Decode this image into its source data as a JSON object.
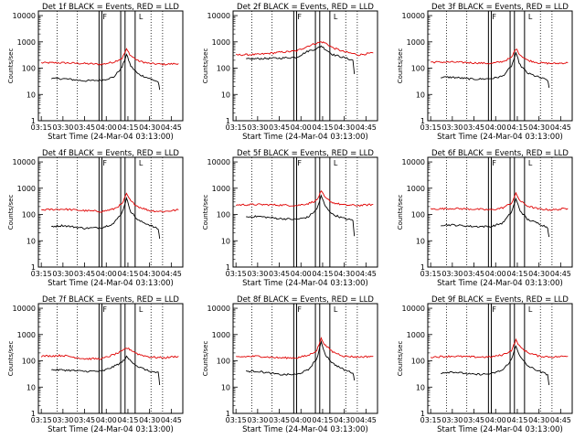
{
  "chart_data": [
    {
      "type": "line",
      "title": "Det 1f BLACK = Events, RED = LLD",
      "ylabel": "Counts/sec",
      "xlabel": "Start Time (24-Mar-04 03:13:00)",
      "xticks": [
        "03:15",
        "03:30",
        "03:45",
        "04:00",
        "04:15",
        "04:30",
        "04:45"
      ],
      "yticks": [
        "1",
        "10",
        "100",
        "1000",
        "10000"
      ],
      "ylim": [
        1,
        15000
      ],
      "yscale": "log",
      "series": [
        {
          "name": "RED = LLD",
          "color": "#e00000",
          "x": [
            "03:15",
            "03:30",
            "03:45",
            "03:57",
            "04:05",
            "04:11",
            "04:14",
            "04:17",
            "04:22",
            "04:30",
            "04:40",
            "04:50"
          ],
          "values": [
            160,
            160,
            150,
            140,
            170,
            240,
            520,
            300,
            190,
            150,
            140,
            150
          ]
        },
        {
          "name": "BLACK = Events",
          "color": "#000000",
          "x": [
            "03:22",
            "03:30",
            "03:45",
            "03:57",
            "04:05",
            "04:11",
            "04:14",
            "04:17",
            "04:22",
            "04:30",
            "04:36",
            "04:37"
          ],
          "values": [
            40,
            40,
            33,
            35,
            45,
            110,
            330,
            120,
            60,
            40,
            30,
            15
          ]
        }
      ]
    },
    {
      "type": "line",
      "title": "Det 2f BLACK = Events, RED = LLD",
      "ylabel": "Counts/sec",
      "xlabel": "Start Time (24-Mar-04 03:13:00)",
      "xticks": [
        "03:15",
        "03:30",
        "03:45",
        "04:00",
        "04:15",
        "04:30",
        "04:45"
      ],
      "yticks": [
        "1",
        "10",
        "100",
        "1000",
        "10000"
      ],
      "ylim": [
        1,
        15000
      ],
      "yscale": "log",
      "series": [
        {
          "name": "RED = LLD",
          "color": "#e00000",
          "x": [
            "03:15",
            "03:30",
            "03:45",
            "03:57",
            "04:05",
            "04:11",
            "04:14",
            "04:17",
            "04:22",
            "04:30",
            "04:40",
            "04:50"
          ],
          "values": [
            320,
            330,
            400,
            450,
            700,
            900,
            1000,
            900,
            600,
            420,
            320,
            380
          ]
        },
        {
          "name": "BLACK = Events",
          "color": "#000000",
          "x": [
            "03:22",
            "03:30",
            "03:45",
            "03:57",
            "04:05",
            "04:11",
            "04:14",
            "04:17",
            "04:22",
            "04:30",
            "04:36",
            "04:37"
          ],
          "values": [
            220,
            230,
            240,
            260,
            450,
            550,
            700,
            520,
            330,
            250,
            200,
            60
          ]
        }
      ]
    },
    {
      "type": "line",
      "title": "Det 3f BLACK = Events, RED = LLD",
      "ylabel": "Counts/sec",
      "xlabel": "Start Time (24-Mar-04 03:13:00)",
      "xticks": [
        "03:15",
        "03:30",
        "03:45",
        "04:00",
        "04:15",
        "04:30",
        "04:45"
      ],
      "yticks": [
        "1",
        "10",
        "100",
        "1000",
        "10000"
      ],
      "ylim": [
        1,
        15000
      ],
      "yscale": "log",
      "series": [
        {
          "name": "RED = LLD",
          "color": "#e00000",
          "x": [
            "03:15",
            "03:30",
            "03:45",
            "03:57",
            "04:05",
            "04:11",
            "04:14",
            "04:17",
            "04:22",
            "04:30",
            "04:40",
            "04:50"
          ],
          "values": [
            170,
            170,
            160,
            150,
            180,
            250,
            560,
            320,
            200,
            160,
            150,
            160
          ]
        },
        {
          "name": "BLACK = Events",
          "color": "#000000",
          "x": [
            "03:22",
            "03:30",
            "03:45",
            "03:57",
            "04:05",
            "04:11",
            "04:14",
            "04:17",
            "04:22",
            "04:30",
            "04:36",
            "04:37"
          ],
          "values": [
            45,
            45,
            38,
            40,
            50,
            120,
            360,
            130,
            65,
            45,
            35,
            18
          ]
        }
      ]
    },
    {
      "type": "line",
      "title": "Det 4f BLACK = Events, RED = LLD",
      "ylabel": "Counts/sec",
      "xlabel": "Start Time (24-Mar-04 03:13:00)",
      "xticks": [
        "03:15",
        "03:30",
        "03:45",
        "04:00",
        "04:15",
        "04:30",
        "04:45"
      ],
      "yticks": [
        "1",
        "10",
        "100",
        "1000",
        "10000"
      ],
      "ylim": [
        1,
        15000
      ],
      "yscale": "log",
      "series": [
        {
          "name": "RED = LLD",
          "color": "#e00000",
          "x": [
            "03:15",
            "03:30",
            "03:45",
            "03:57",
            "04:05",
            "04:11",
            "04:14",
            "04:17",
            "04:22",
            "04:30",
            "04:40",
            "04:50"
          ],
          "values": [
            150,
            160,
            140,
            130,
            160,
            250,
            600,
            320,
            200,
            140,
            130,
            150
          ]
        },
        {
          "name": "BLACK = Events",
          "color": "#000000",
          "x": [
            "03:22",
            "03:30",
            "03:45",
            "03:57",
            "04:05",
            "04:11",
            "04:14",
            "04:17",
            "04:22",
            "04:30",
            "04:36",
            "04:37"
          ],
          "values": [
            35,
            38,
            30,
            32,
            45,
            120,
            400,
            130,
            60,
            40,
            28,
            12
          ]
        }
      ]
    },
    {
      "type": "line",
      "title": "Det 5f BLACK = Events, RED = LLD",
      "ylabel": "Counts/sec",
      "xlabel": "Start Time (24-Mar-04 03:13:00)",
      "xticks": [
        "03:15",
        "03:30",
        "03:45",
        "04:00",
        "04:15",
        "04:30",
        "04:45"
      ],
      "yticks": [
        "1",
        "10",
        "100",
        "1000",
        "10000"
      ],
      "ylim": [
        1,
        15000
      ],
      "yscale": "log",
      "series": [
        {
          "name": "RED = LLD",
          "color": "#e00000",
          "x": [
            "03:15",
            "03:30",
            "03:45",
            "03:57",
            "04:05",
            "04:11",
            "04:14",
            "04:17",
            "04:22",
            "04:30",
            "04:40",
            "04:50"
          ],
          "values": [
            230,
            240,
            230,
            220,
            260,
            350,
            750,
            420,
            280,
            230,
            220,
            240
          ]
        },
        {
          "name": "BLACK = Events",
          "color": "#000000",
          "x": [
            "03:22",
            "03:30",
            "03:45",
            "03:57",
            "04:05",
            "04:11",
            "04:14",
            "04:17",
            "04:22",
            "04:30",
            "04:36",
            "04:37"
          ],
          "values": [
            80,
            85,
            70,
            65,
            80,
            160,
            500,
            200,
            100,
            70,
            60,
            15
          ]
        }
      ]
    },
    {
      "type": "line",
      "title": "Det 6f BLACK = Events, RED = LLD",
      "ylabel": "Counts/sec",
      "xlabel": "Start Time (24-Mar-04 03:13:00)",
      "xticks": [
        "03:15",
        "03:30",
        "03:45",
        "04:00",
        "04:15",
        "04:30",
        "04:45"
      ],
      "yticks": [
        "1",
        "10",
        "100",
        "1000",
        "10000"
      ],
      "ylim": [
        1,
        15000
      ],
      "yscale": "log",
      "series": [
        {
          "name": "RED = LLD",
          "color": "#e00000",
          "x": [
            "03:15",
            "03:30",
            "03:45",
            "03:57",
            "04:05",
            "04:11",
            "04:14",
            "04:17",
            "04:22",
            "04:30",
            "04:40",
            "04:50"
          ],
          "values": [
            160,
            170,
            160,
            150,
            180,
            270,
            620,
            330,
            210,
            160,
            150,
            170
          ]
        },
        {
          "name": "BLACK = Events",
          "color": "#000000",
          "x": [
            "03:22",
            "03:30",
            "03:45",
            "03:57",
            "04:05",
            "04:11",
            "04:14",
            "04:17",
            "04:22",
            "04:30",
            "04:36",
            "04:37"
          ],
          "values": [
            40,
            40,
            35,
            35,
            48,
            125,
            380,
            140,
            65,
            45,
            32,
            14
          ]
        }
      ]
    },
    {
      "type": "line",
      "title": "Det 7f BLACK = Events, RED = LLD",
      "ylabel": "Counts/sec",
      "xlabel": "Start Time (24-Mar-04 03:13:00)",
      "xticks": [
        "03:15",
        "03:30",
        "03:45",
        "04:00",
        "04:15",
        "04:30",
        "04:45"
      ],
      "yticks": [
        "1",
        "10",
        "100",
        "1000",
        "10000"
      ],
      "ylim": [
        1,
        15000
      ],
      "yscale": "log",
      "series": [
        {
          "name": "RED = LLD",
          "color": "#e00000",
          "x": [
            "03:15",
            "03:30",
            "03:45",
            "03:57",
            "04:05",
            "04:11",
            "04:14",
            "04:17",
            "04:22",
            "04:30",
            "04:40",
            "04:50"
          ],
          "values": [
            150,
            160,
            120,
            120,
            170,
            230,
            310,
            260,
            180,
            140,
            130,
            150
          ]
        },
        {
          "name": "BLACK = Events",
          "color": "#000000",
          "x": [
            "03:22",
            "03:30",
            "03:45",
            "03:57",
            "04:05",
            "04:11",
            "04:14",
            "04:17",
            "04:22",
            "04:30",
            "04:36",
            "04:37"
          ],
          "values": [
            45,
            45,
            40,
            40,
            60,
            90,
            140,
            100,
            60,
            40,
            35,
            12
          ]
        }
      ]
    },
    {
      "type": "line",
      "title": "Det 8f BLACK = Events, RED = LLD",
      "ylabel": "Counts/sec",
      "xlabel": "Start Time (24-Mar-04 03:13:00)",
      "xticks": [
        "03:15",
        "03:30",
        "03:45",
        "04:00",
        "04:15",
        "04:30",
        "04:45"
      ],
      "yticks": [
        "1",
        "10",
        "100",
        "1000",
        "10000"
      ],
      "ylim": [
        1,
        15000
      ],
      "yscale": "log",
      "series": [
        {
          "name": "RED = LLD",
          "color": "#e00000",
          "x": [
            "03:15",
            "03:30",
            "03:45",
            "03:57",
            "04:05",
            "04:11",
            "04:14",
            "04:17",
            "04:22",
            "04:30",
            "04:40",
            "04:50"
          ],
          "values": [
            140,
            150,
            130,
            130,
            160,
            250,
            700,
            380,
            220,
            150,
            140,
            150
          ]
        },
        {
          "name": "BLACK = Events",
          "color": "#000000",
          "x": [
            "03:22",
            "03:30",
            "03:45",
            "03:57",
            "04:05",
            "04:11",
            "04:14",
            "04:17",
            "04:22",
            "04:30",
            "04:36",
            "04:37"
          ],
          "values": [
            40,
            40,
            30,
            30,
            45,
            120,
            500,
            170,
            80,
            45,
            35,
            18
          ]
        }
      ]
    },
    {
      "type": "line",
      "title": "Det 9f BLACK = Events, RED = LLD",
      "ylabel": "Counts/sec",
      "xlabel": "Start Time (24-Mar-04 03:13:00)",
      "xticks": [
        "03:15",
        "03:30",
        "03:45",
        "04:00",
        "04:15",
        "04:30",
        "04:45"
      ],
      "yticks": [
        "1",
        "10",
        "100",
        "1000",
        "10000"
      ],
      "ylim": [
        1,
        15000
      ],
      "yscale": "log",
      "series": [
        {
          "name": "RED = LLD",
          "color": "#e00000",
          "x": [
            "03:15",
            "03:30",
            "03:45",
            "03:57",
            "04:05",
            "04:11",
            "04:14",
            "04:17",
            "04:22",
            "04:30",
            "04:40",
            "04:50"
          ],
          "values": [
            140,
            150,
            140,
            140,
            170,
            250,
            620,
            330,
            210,
            150,
            140,
            150
          ]
        },
        {
          "name": "BLACK = Events",
          "color": "#000000",
          "x": [
            "03:22",
            "03:30",
            "03:45",
            "03:57",
            "04:05",
            "04:11",
            "04:14",
            "04:17",
            "04:22",
            "04:30",
            "04:36",
            "04:37"
          ],
          "values": [
            35,
            38,
            30,
            32,
            45,
            110,
            380,
            140,
            65,
            40,
            30,
            12
          ]
        }
      ]
    }
  ],
  "markers": {
    "solid_lines": [
      "03:55",
      "03:57",
      "04:10",
      "04:13",
      "04:20"
    ],
    "dotted_lines": [
      "03:26",
      "03:40",
      "04:31",
      "04:39"
    ],
    "bracket_labels": [
      "F",
      "L"
    ]
  }
}
